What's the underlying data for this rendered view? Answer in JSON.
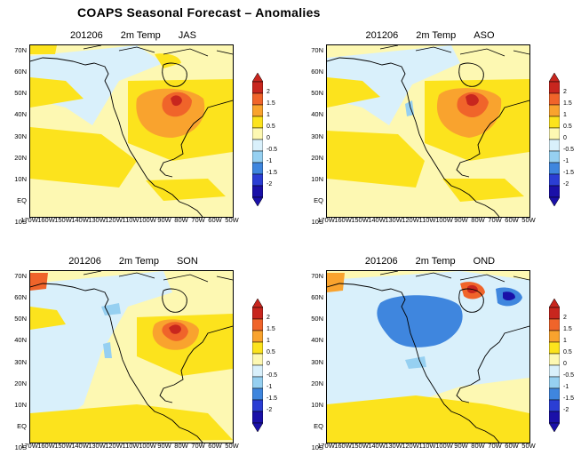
{
  "title": "COAPS Seasonal Forecast – Anomalies",
  "panels": [
    {
      "init": "201206",
      "variable": "2m Temp",
      "season": "JAS"
    },
    {
      "init": "201206",
      "variable": "2m Temp",
      "season": "ASO"
    },
    {
      "init": "201206",
      "variable": "2m Temp",
      "season": "SON"
    },
    {
      "init": "201206",
      "variable": "2m Temp",
      "season": "OND"
    }
  ],
  "lat_labels": [
    "70N",
    "60N",
    "50N",
    "40N",
    "30N",
    "20N",
    "10N",
    "EQ",
    "10S"
  ],
  "lon_labels": [
    "170W",
    "160W",
    "150W",
    "140W",
    "130W",
    "120W",
    "110W",
    "100W",
    "90W",
    "80W",
    "70W",
    "60W",
    "50W"
  ],
  "colorbar": {
    "labels": [
      "2",
      "1.5",
      "1",
      "0.5",
      "0",
      "-0.5",
      "-1",
      "-1.5",
      "-2"
    ],
    "colors": [
      "#c8261e",
      "#f0642a",
      "#f9a32e",
      "#fce31d",
      "#fdf8b2",
      "#d9f0fb",
      "#96d0f1",
      "#3f86de",
      "#2b3ed4",
      "#1a10a8"
    ]
  }
}
